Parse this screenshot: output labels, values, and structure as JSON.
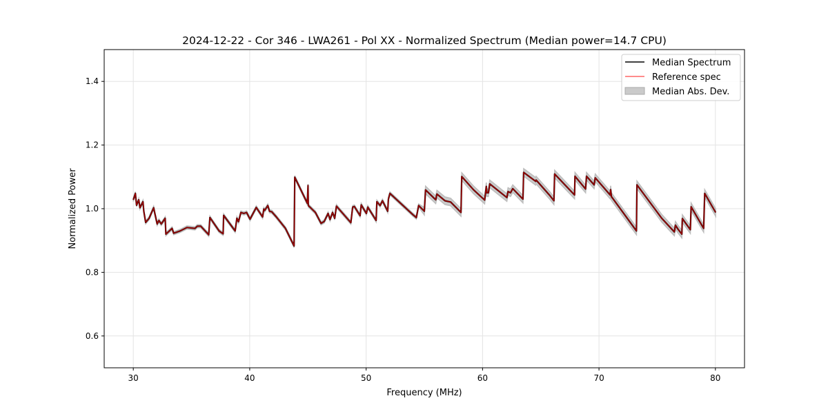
{
  "chart_data": {
    "type": "line",
    "title": "2024-12-22 - Cor 346 - LWA261 - Pol XX - Normalized Spectrum (Median power=14.7 CPU)",
    "xlabel": "Frequency (MHz)",
    "ylabel": "Normalized Power",
    "xlim": [
      27.5,
      82.5
    ],
    "ylim": [
      0.5,
      1.5
    ],
    "xticks": [
      30,
      40,
      50,
      60,
      70,
      80
    ],
    "yticks": [
      0.6,
      0.8,
      1.0,
      1.2,
      1.4
    ],
    "xtick_labels": [
      "30",
      "40",
      "50",
      "60",
      "70",
      "80"
    ],
    "ytick_labels": [
      "0.6",
      "0.8",
      "1.0",
      "1.2",
      "1.4"
    ],
    "grid": true,
    "legend_position": "top-right",
    "legend": [
      "Median Spectrum",
      "Reference spec",
      "Median Abs. Dev."
    ],
    "colors": {
      "median": "#000000",
      "reference": "#ff0000",
      "mad": "#bdbdbd"
    },
    "mad": {
      "below_55MHz": 0.005,
      "above_55MHz": 0.012
    },
    "series": [
      {
        "name": "Median Spectrum",
        "points": [
          [
            30.0,
            1.028
          ],
          [
            30.18,
            1.048
          ],
          [
            30.28,
            1.011
          ],
          [
            30.47,
            1.028
          ],
          [
            30.57,
            1.003
          ],
          [
            30.83,
            1.022
          ],
          [
            30.9,
            0.992
          ],
          [
            31.06,
            0.957
          ],
          [
            31.36,
            0.97
          ],
          [
            31.75,
            1.003
          ],
          [
            31.85,
            0.985
          ],
          [
            32.05,
            0.952
          ],
          [
            32.2,
            0.963
          ],
          [
            32.4,
            0.952
          ],
          [
            32.74,
            0.97
          ],
          [
            32.8,
            0.92
          ],
          [
            33.33,
            0.938
          ],
          [
            33.47,
            0.923
          ],
          [
            34.02,
            0.93
          ],
          [
            34.61,
            0.941
          ],
          [
            35.3,
            0.938
          ],
          [
            35.5,
            0.945
          ],
          [
            35.79,
            0.945
          ],
          [
            36.48,
            0.918
          ],
          [
            36.58,
            0.972
          ],
          [
            37.37,
            0.93
          ],
          [
            37.72,
            0.921
          ],
          [
            37.76,
            0.979
          ],
          [
            38.75,
            0.93
          ],
          [
            38.9,
            0.97
          ],
          [
            39.04,
            0.959
          ],
          [
            39.24,
            0.988
          ],
          [
            39.5,
            0.985
          ],
          [
            39.73,
            0.988
          ],
          [
            40.03,
            0.967
          ],
          [
            40.56,
            1.004
          ],
          [
            41.11,
            0.974
          ],
          [
            41.21,
            0.999
          ],
          [
            41.3,
            0.995
          ],
          [
            41.55,
            1.01
          ],
          [
            41.7,
            0.992
          ],
          [
            41.9,
            0.99
          ],
          [
            42.29,
            0.974
          ],
          [
            43.07,
            0.938
          ],
          [
            43.81,
            0.883
          ],
          [
            43.87,
            1.099
          ],
          [
            44.95,
            1.017
          ],
          [
            45.01,
            1.073
          ],
          [
            45.03,
            1.01
          ],
          [
            45.64,
            0.988
          ],
          [
            46.13,
            0.954
          ],
          [
            46.4,
            0.96
          ],
          [
            46.73,
            0.985
          ],
          [
            46.9,
            0.966
          ],
          [
            47.12,
            0.988
          ],
          [
            47.3,
            0.97
          ],
          [
            47.45,
            1.008
          ],
          [
            48.69,
            0.956
          ],
          [
            48.84,
            1.005
          ],
          [
            48.99,
            1.007
          ],
          [
            49.48,
            0.978
          ],
          [
            49.58,
            1.012
          ],
          [
            50.02,
            0.985
          ],
          [
            50.14,
            1.005
          ],
          [
            50.86,
            0.963
          ],
          [
            50.92,
            1.022
          ],
          [
            51.2,
            1.01
          ],
          [
            51.4,
            1.025
          ],
          [
            51.85,
            0.992
          ],
          [
            51.91,
            1.03
          ],
          [
            52.04,
            1.048
          ],
          [
            54.02,
            0.981
          ],
          [
            54.31,
            0.972
          ],
          [
            54.51,
            1.01
          ],
          [
            55.0,
            0.992
          ],
          [
            55.1,
            1.059
          ],
          [
            55.98,
            1.028
          ],
          [
            56.08,
            1.046
          ],
          [
            56.77,
            1.025
          ],
          [
            57.26,
            1.021
          ],
          [
            58.15,
            0.988
          ],
          [
            58.21,
            1.101
          ],
          [
            59.23,
            1.059
          ],
          [
            60.18,
            1.027
          ],
          [
            60.32,
            1.07
          ],
          [
            60.37,
            1.05
          ],
          [
            60.5,
            1.05
          ],
          [
            60.62,
            1.078
          ],
          [
            62.09,
            1.035
          ],
          [
            62.19,
            1.054
          ],
          [
            62.4,
            1.05
          ],
          [
            62.59,
            1.063
          ],
          [
            63.47,
            1.03
          ],
          [
            63.53,
            1.114
          ],
          [
            64.56,
            1.086
          ],
          [
            64.6,
            1.09
          ],
          [
            65.74,
            1.043
          ],
          [
            66.13,
            1.025
          ],
          [
            66.19,
            1.109
          ],
          [
            67.9,
            1.043
          ],
          [
            67.94,
            1.102
          ],
          [
            68.85,
            1.062
          ],
          [
            68.93,
            1.102
          ],
          [
            69.58,
            1.075
          ],
          [
            69.68,
            1.097
          ],
          [
            70.96,
            1.043
          ],
          [
            71.0,
            1.06
          ],
          [
            71.07,
            1.038
          ],
          [
            73.22,
            0.93
          ],
          [
            73.26,
            1.075
          ],
          [
            75.39,
            0.97
          ],
          [
            76.47,
            0.927
          ],
          [
            76.57,
            0.948
          ],
          [
            76.8,
            0.935
          ],
          [
            77.12,
            0.92
          ],
          [
            77.16,
            0.969
          ],
          [
            77.85,
            0.934
          ],
          [
            77.91,
            1.006
          ],
          [
            78.99,
            0.938
          ],
          [
            79.08,
            1.048
          ],
          [
            80.02,
            0.988
          ]
        ]
      },
      {
        "name": "Reference spec",
        "same_as": "Median Spectrum"
      }
    ]
  }
}
